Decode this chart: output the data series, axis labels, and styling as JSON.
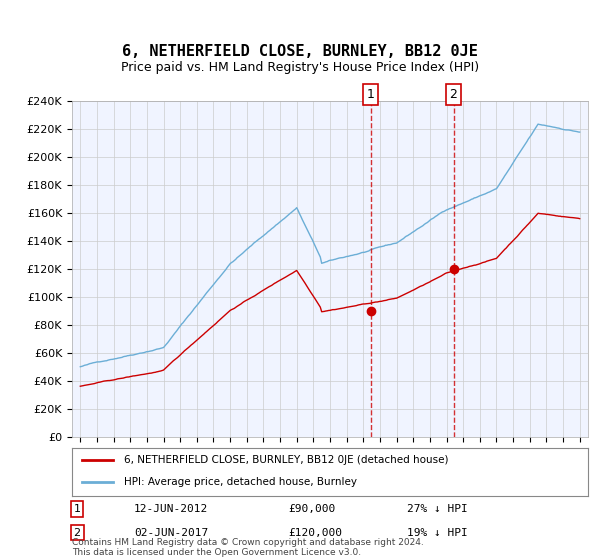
{
  "title": "6, NETHERFIELD CLOSE, BURNLEY, BB12 0JE",
  "subtitle": "Price paid vs. HM Land Registry's House Price Index (HPI)",
  "legend_line1": "6, NETHERFIELD CLOSE, BURNLEY, BB12 0JE (detached house)",
  "legend_line2": "HPI: Average price, detached house, Burnley",
  "annotation1_label": "1",
  "annotation1_date": "12-JUN-2012",
  "annotation1_price": "£90,000",
  "annotation1_hpi": "27% ↓ HPI",
  "annotation1_year": 2012.44,
  "annotation1_value": 90000,
  "annotation2_label": "2",
  "annotation2_date": "02-JUN-2017",
  "annotation2_price": "£120,000",
  "annotation2_hpi": "19% ↓ HPI",
  "annotation2_year": 2017.42,
  "annotation2_value": 120000,
  "hpi_color": "#6baed6",
  "price_color": "#cc0000",
  "marker_color": "#cc0000",
  "background_color": "#ffffff",
  "plot_bg_color": "#f0f4ff",
  "grid_color": "#cccccc",
  "ymin": 0,
  "ymax": 240000,
  "ytick_step": 20000,
  "footer": "Contains HM Land Registry data © Crown copyright and database right 2024.\nThis data is licensed under the Open Government Licence v3.0."
}
